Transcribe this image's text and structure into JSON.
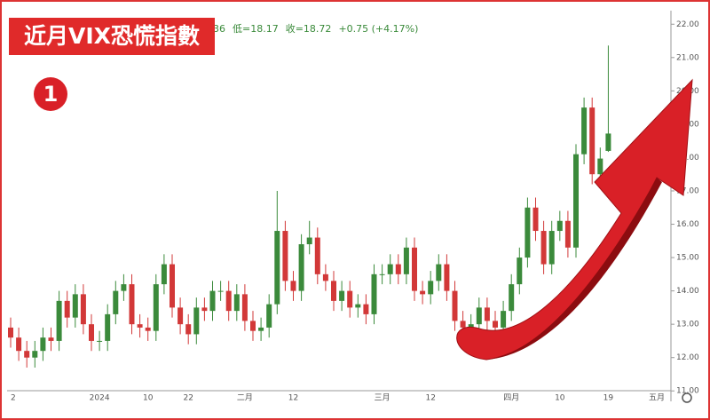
{
  "chart_data": {
    "type": "candlestick",
    "title": "近月VIX恐慌指數",
    "badge": "1",
    "header": [
      "36",
      "低=18.17",
      "收=18.72",
      "+0.75 (+4.17%)"
    ],
    "up_color": "#3b8a3b",
    "down_color": "#d23838",
    "categories": [
      "2",
      null,
      null,
      null,
      null,
      null,
      null,
      null,
      null,
      null,
      null,
      "2024",
      null,
      null,
      null,
      null,
      null,
      "10",
      null,
      null,
      null,
      null,
      "22",
      null,
      null,
      null,
      null,
      null,
      null,
      "二月",
      null,
      null,
      null,
      null,
      null,
      "12",
      null,
      null,
      null,
      null,
      null,
      null,
      null,
      null,
      null,
      null,
      "三月",
      null,
      null,
      null,
      null,
      null,
      "12",
      null,
      null,
      null,
      null,
      null,
      null,
      null,
      null,
      null,
      "四月",
      null,
      null,
      null,
      null,
      null,
      "10",
      null,
      null,
      null,
      null,
      null,
      "19",
      null,
      null,
      null,
      null,
      null,
      "五月"
    ],
    "open": [
      12.9,
      12.6,
      12.2,
      12.0,
      12.2,
      12.6,
      12.5,
      13.7,
      13.2,
      13.9,
      13.0,
      12.5,
      12.5,
      13.3,
      14.0,
      14.2,
      13.0,
      12.9,
      12.8,
      14.2,
      14.8,
      13.5,
      13.0,
      12.7,
      13.5,
      13.4,
      14.0,
      14.0,
      13.4,
      13.9,
      13.1,
      12.8,
      12.9,
      13.6,
      15.8,
      14.3,
      14.0,
      15.4,
      15.6,
      14.5,
      14.3,
      13.7,
      14.0,
      13.5,
      13.6,
      13.3,
      14.5,
      14.5,
      14.8,
      14.5,
      15.3,
      14.0,
      13.9,
      14.3,
      14.8,
      14.0,
      13.1,
      12.9,
      13.0,
      13.5,
      13.1,
      12.9,
      13.4,
      14.2,
      15.0,
      16.5,
      15.8,
      14.8,
      15.8,
      16.1,
      15.3,
      18.1,
      19.5,
      17.5,
      18.2,
      null,
      null,
      null,
      null,
      null,
      null
    ],
    "high": [
      13.2,
      12.9,
      12.5,
      12.5,
      12.9,
      12.9,
      14.0,
      14.0,
      14.2,
      14.2,
      13.3,
      12.8,
      13.6,
      14.3,
      14.5,
      14.5,
      13.3,
      13.2,
      14.5,
      15.1,
      15.1,
      13.8,
      13.3,
      13.8,
      13.8,
      14.3,
      14.3,
      14.3,
      14.2,
      14.2,
      13.4,
      13.2,
      13.9,
      17.0,
      16.1,
      14.6,
      15.7,
      16.1,
      15.9,
      14.8,
      14.6,
      14.3,
      14.3,
      13.9,
      13.9,
      14.8,
      14.8,
      15.1,
      15.1,
      15.6,
      15.6,
      14.3,
      14.6,
      15.1,
      15.1,
      14.3,
      13.4,
      13.3,
      13.8,
      13.8,
      13.4,
      13.7,
      14.5,
      15.3,
      16.8,
      16.8,
      16.1,
      16.1,
      16.4,
      16.4,
      18.4,
      19.8,
      19.8,
      18.3,
      21.36,
      null,
      null,
      null,
      null,
      null,
      null
    ],
    "low": [
      12.3,
      11.9,
      11.7,
      11.7,
      11.9,
      12.2,
      12.2,
      12.9,
      12.9,
      12.7,
      12.2,
      12.2,
      12.2,
      13.0,
      13.7,
      12.7,
      12.6,
      12.5,
      12.5,
      13.9,
      13.2,
      12.7,
      12.4,
      12.4,
      13.1,
      13.1,
      13.7,
      13.1,
      13.1,
      12.8,
      12.5,
      12.5,
      12.6,
      13.3,
      14.0,
      13.7,
      13.7,
      15.1,
      14.2,
      14.0,
      13.4,
      13.4,
      13.2,
      13.2,
      13.0,
      13.0,
      14.2,
      14.2,
      14.2,
      14.2,
      13.7,
      13.6,
      13.6,
      14.0,
      13.7,
      12.8,
      12.6,
      12.6,
      12.7,
      12.8,
      12.6,
      12.6,
      13.1,
      13.9,
      14.7,
      15.5,
      14.5,
      14.5,
      15.5,
      15.0,
      15.0,
      17.8,
      17.2,
      17.2,
      18.17,
      null,
      null,
      null,
      null,
      null,
      null
    ],
    "close": [
      12.6,
      12.2,
      12.0,
      12.2,
      12.6,
      12.5,
      13.7,
      13.2,
      13.9,
      13.0,
      12.5,
      12.5,
      13.3,
      14.0,
      14.2,
      13.0,
      12.9,
      12.8,
      14.2,
      14.8,
      13.5,
      13.0,
      12.7,
      13.5,
      13.4,
      14.0,
      14.0,
      13.4,
      13.9,
      13.1,
      12.8,
      12.9,
      13.6,
      15.8,
      14.3,
      14.0,
      15.4,
      15.6,
      14.5,
      14.3,
      13.7,
      14.0,
      13.5,
      13.6,
      13.3,
      14.5,
      14.5,
      14.8,
      14.5,
      15.3,
      14.0,
      13.9,
      14.3,
      14.8,
      14.0,
      13.1,
      12.9,
      13.0,
      13.5,
      13.1,
      12.9,
      13.4,
      14.2,
      15.0,
      16.5,
      15.8,
      14.8,
      15.8,
      16.1,
      15.3,
      18.1,
      19.5,
      17.5,
      17.97,
      18.72,
      null,
      null,
      null,
      null,
      null,
      null
    ],
    "ylim": [
      10.9,
      22.3
    ],
    "yticks": [
      {
        "value": 11,
        "label": "11.00"
      },
      {
        "value": 12,
        "label": "12.00"
      },
      {
        "value": 13,
        "label": "13.00"
      },
      {
        "value": 14,
        "label": "14.00"
      },
      {
        "value": 15,
        "label": "15.00"
      },
      {
        "value": 16,
        "label": "16.00"
      },
      {
        "value": 17,
        "label": "17.00"
      },
      {
        "value": 18,
        "label": "18.00"
      },
      {
        "value": 19,
        "label": "19.00"
      },
      {
        "value": 20,
        "label": "20.00"
      },
      {
        "value": 21,
        "label": "21.00"
      },
      {
        "value": 22,
        "label": "22.00"
      }
    ],
    "grid": false
  }
}
